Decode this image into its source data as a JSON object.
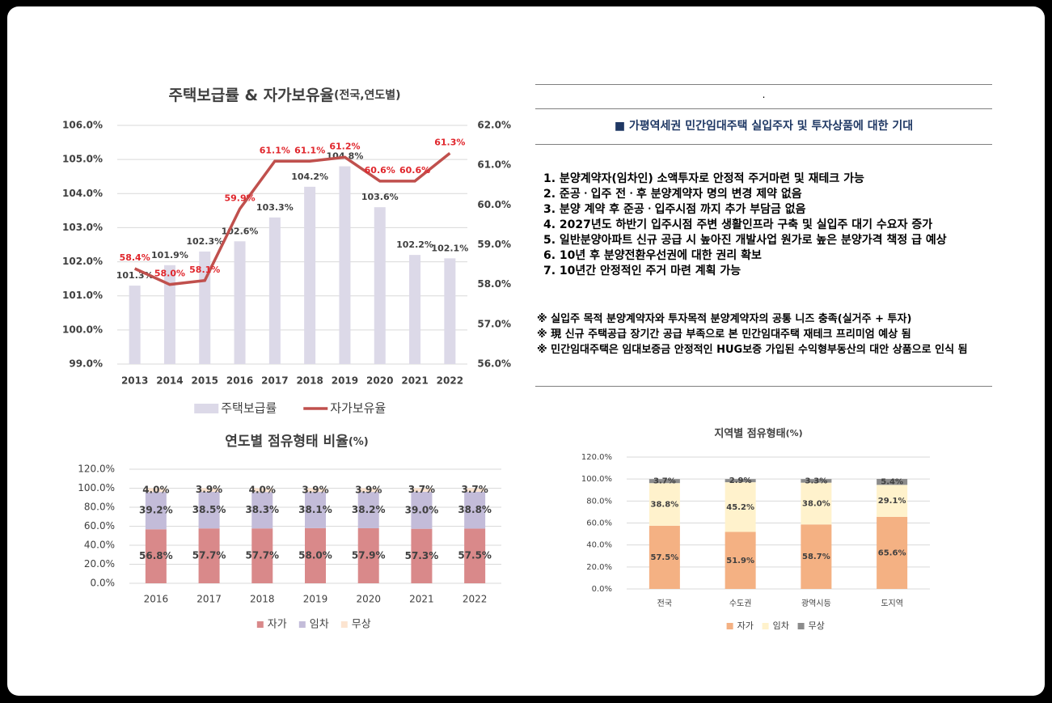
{
  "chart_data": [
    {
      "type": "combo",
      "title": "주택보급률 & 자가보유율",
      "subtitle": "(전국,연도별)",
      "categories": [
        "2013",
        "2014",
        "2015",
        "2016",
        "2017",
        "2018",
        "2019",
        "2020",
        "2021",
        "2022"
      ],
      "series": [
        {
          "name": "주택보급률",
          "type": "bar",
          "color": "#dcd9e8",
          "values": [
            101.3,
            101.9,
            102.3,
            102.6,
            103.3,
            104.2,
            104.8,
            103.6,
            102.2,
            102.1
          ],
          "value_labels": [
            "101.3%",
            "101.9%",
            "102.3%",
            "102.6%",
            "103.3%",
            "104.2%",
            "104.8%",
            "103.6%",
            "102.2%",
            "102.1%"
          ]
        },
        {
          "name": "자가보유율",
          "type": "line",
          "axis": "y2",
          "color": "#c0504d",
          "values": [
            58.4,
            58.0,
            58.1,
            59.9,
            61.1,
            61.1,
            61.2,
            60.6,
            60.6,
            61.3
          ],
          "value_labels": [
            "58.4%",
            "58.0%",
            "58.1%",
            "59.9%",
            "61.1%",
            "61.1%",
            "61.2%",
            "60.6%",
            "60.6%",
            "61.3%"
          ]
        }
      ],
      "ylim": [
        99,
        106
      ],
      "yticks": [
        {
          "value": 99,
          "label": "99.0%"
        },
        {
          "value": 100,
          "label": "100.0%"
        },
        {
          "value": 101,
          "label": "101.0%"
        },
        {
          "value": 102,
          "label": "102.0%"
        },
        {
          "value": 103,
          "label": "103.0%"
        },
        {
          "value": 104,
          "label": "104.0%"
        },
        {
          "value": 105,
          "label": "105.0%"
        },
        {
          "value": 106,
          "label": "106.0%"
        }
      ],
      "y2lim": [
        56,
        62
      ],
      "y2ticks": [
        {
          "value": 56,
          "label": "56.0%"
        },
        {
          "value": 57,
          "label": "57.0%"
        },
        {
          "value": 58,
          "label": "58.0%"
        },
        {
          "value": 59,
          "label": "59.0%"
        },
        {
          "value": 60,
          "label": "60.0%"
        },
        {
          "value": 61,
          "label": "61.0%"
        },
        {
          "value": 62,
          "label": "62.0%"
        }
      ],
      "grid": true,
      "legend": "bottom"
    },
    {
      "type": "stacked_bar",
      "title": "연도별 점유형태 비율",
      "subtitle": "(%)",
      "categories": [
        "2016",
        "2017",
        "2018",
        "2019",
        "2020",
        "2021",
        "2022"
      ],
      "series": [
        {
          "name": "자가",
          "color": "#d9898a",
          "values": [
            56.8,
            57.7,
            57.7,
            58.0,
            57.9,
            57.3,
            57.5
          ],
          "value_labels": [
            "56.8%",
            "57.7%",
            "57.7%",
            "58.0%",
            "57.9%",
            "57.3%",
            "57.5%"
          ]
        },
        {
          "name": "임차",
          "color": "#c3bcd9",
          "values": [
            39.2,
            38.5,
            38.3,
            38.1,
            38.2,
            39.0,
            38.8
          ],
          "value_labels": [
            "39.2%",
            "38.5%",
            "38.3%",
            "38.1%",
            "38.2%",
            "39.0%",
            "38.8%"
          ]
        },
        {
          "name": "무상",
          "color": "#fce4d0",
          "values": [
            4.0,
            3.9,
            4.0,
            3.9,
            3.9,
            3.7,
            3.7
          ],
          "value_labels": [
            "4.0%",
            "3.9%",
            "4.0%",
            "3.9%",
            "3.9%",
            "3.7%",
            "3.7%"
          ]
        }
      ],
      "ylim": [
        0,
        120
      ],
      "yticks": [
        {
          "value": 0,
          "label": "0.0%"
        },
        {
          "value": 20,
          "label": "20.0%"
        },
        {
          "value": 40,
          "label": "40.0%"
        },
        {
          "value": 60,
          "label": "60.0%"
        },
        {
          "value": 80,
          "label": "80.0%"
        },
        {
          "value": 100,
          "label": "100.0%"
        },
        {
          "value": 120,
          "label": "120.0%"
        }
      ],
      "grid": true,
      "legend": "bottom"
    },
    {
      "type": "stacked_bar",
      "title": "지역별 점유형태",
      "subtitle": "(%)",
      "categories": [
        "전국",
        "수도권",
        "광역시등",
        "도지역"
      ],
      "series": [
        {
          "name": "자가",
          "color": "#f4b183",
          "values": [
            57.5,
            51.9,
            58.7,
            65.6
          ],
          "value_labels": [
            "57.5%",
            "51.9%",
            "58.7%",
            "65.6%"
          ]
        },
        {
          "name": "임차",
          "color": "#fff2cc",
          "values": [
            38.8,
            45.2,
            38.0,
            29.1
          ],
          "value_labels": [
            "38.8%",
            "45.2%",
            "38.0%",
            "29.1%"
          ]
        },
        {
          "name": "무상",
          "color": "#8c8c8c",
          "values": [
            3.7,
            2.9,
            3.3,
            5.4
          ],
          "value_labels": [
            "3.7%",
            "2.9%",
            "3.3%",
            "5.4%"
          ]
        }
      ],
      "ylim": [
        0,
        120
      ],
      "yticks": [
        {
          "value": 0,
          "label": "0.0%"
        },
        {
          "value": 20,
          "label": "20.0%"
        },
        {
          "value": 40,
          "label": "40.0%"
        },
        {
          "value": 60,
          "label": "60.0%"
        },
        {
          "value": 80,
          "label": "80.0%"
        },
        {
          "value": 100,
          "label": "100.0%"
        },
        {
          "value": 120,
          "label": "120.0%"
        }
      ],
      "grid": true,
      "legend": "bottom"
    }
  ],
  "panel": {
    "header": ".",
    "heading": "■ 가평역세권 민간임대주택 실입주자 및 투자상품에 대한 기대",
    "items": [
      "1. 분양계약자(임차인) 소액투자로 안정적 주거마련 및 재테크 가능",
      "2. 준공ㆍ입주 전ㆍ후 분양계약자 명의 변경 제약 없음",
      "3. 분양 계약 후 준공ㆍ입주시점 까지 추가 부담금 없음",
      "4. 2027년도 하반기 입주시점 주변 생활인프라 구축 및 실입주 대기 수요자 증가",
      "5. 일반분양아파트 신규 공급 시 높아진 개발사업 원가로 높은 분양가격 책정 급 예상",
      "6. 10년 후 분양전환우선권에 대한 권리 확보",
      "7. 10년간 안정적인 주거 마련 계획 가능"
    ],
    "notes": [
      "※ 실입주 목적 분양계약자와 투자목적 분양계약자의 공통 니즈 충족(실거주 + 투자)",
      "※ 現 신규 주택공급 장기간 공급 부족으로 본 민간임대주택 재테크 프리미엄 예상 됨",
      "※ 민간임대주택은 임대보증금 안정적인 HUG보증 가입된 수익형부동산의 대안 상품으로 인식 됨"
    ]
  }
}
